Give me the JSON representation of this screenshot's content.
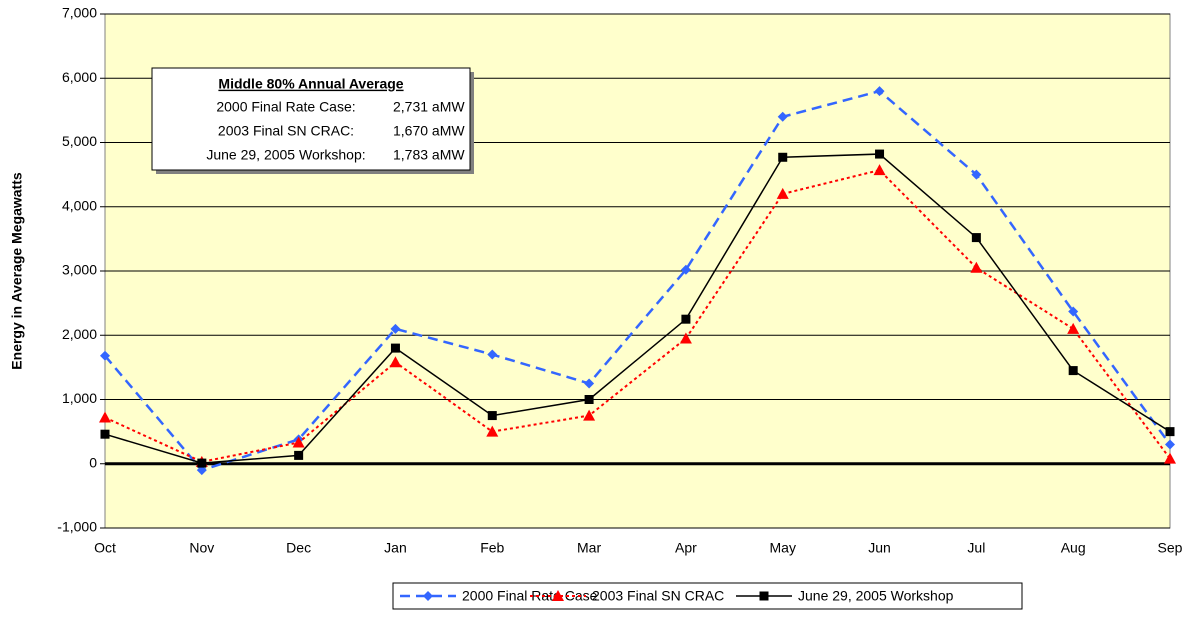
{
  "chart_data": {
    "type": "line",
    "y_label": "Energy in Average Megawatts",
    "categories": [
      "Oct",
      "Nov",
      "Dec",
      "Jan",
      "Feb",
      "Mar",
      "Apr",
      "May",
      "Jun",
      "Jul",
      "Aug",
      "Sep"
    ],
    "series": [
      {
        "name": "2000 Final Rate Case",
        "color": "#3366ff",
        "line_style": "dashed",
        "marker": "diamond",
        "values": [
          1680,
          -100,
          380,
          2100,
          1700,
          1250,
          3020,
          5400,
          5800,
          4500,
          2370,
          300
        ]
      },
      {
        "name": "2003 Final SN CRAC",
        "color": "#ff0000",
        "line_style": "dotted",
        "marker": "triangle",
        "values": [
          720,
          30,
          330,
          1580,
          500,
          750,
          1950,
          4200,
          4570,
          3050,
          2100,
          80
        ]
      },
      {
        "name": "June 29, 2005 Workshop",
        "color": "#000000",
        "line_style": "solid",
        "marker": "square",
        "values": [
          460,
          10,
          130,
          1800,
          750,
          1000,
          2250,
          4770,
          4820,
          3520,
          1450,
          500
        ]
      }
    ],
    "ylim": [
      -1000,
      7000
    ],
    "yticks": [
      {
        "value": -1000,
        "label": "-1,000"
      },
      0,
      {
        "value": 1000,
        "label": "1,000"
      },
      {
        "value": 2000,
        "label": "2,000"
      },
      {
        "value": 3000,
        "label": "3,000"
      },
      {
        "value": 4000,
        "label": "4,000"
      },
      {
        "value": 5000,
        "label": "5,000"
      },
      {
        "value": 6000,
        "label": "6,000"
      },
      {
        "value": 7000,
        "label": "7,000"
      }
    ],
    "grid": true,
    "legend": "bottom",
    "annotation": {
      "title": "Middle 80% Annual Average",
      "rows": [
        [
          "2000 Final Rate Case:",
          "2,731 aMW"
        ],
        [
          "2003 Final SN CRAC:",
          "1,670 aMW"
        ],
        [
          "June 29, 2005 Workshop:",
          "1,783 aMW"
        ]
      ]
    }
  }
}
